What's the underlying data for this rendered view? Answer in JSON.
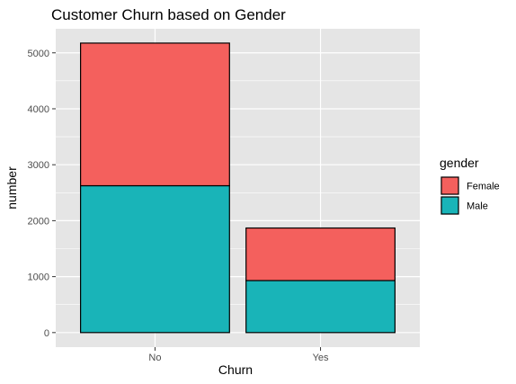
{
  "chart_data": {
    "type": "bar",
    "stacked": true,
    "title": "Customer Churn based on Gender",
    "xlabel": "Churn",
    "ylabel": "number",
    "categories": [
      "No",
      "Yes"
    ],
    "series": [
      {
        "name": "Male",
        "values": [
          2625,
          930
        ],
        "color": "#19b4b8"
      },
      {
        "name": "Female",
        "values": [
          2549,
          939
        ],
        "color": "#f4605d"
      }
    ],
    "ylim": [
      -260,
      5430
    ],
    "yticks": [
      0,
      1000,
      2000,
      3000,
      4000,
      5000
    ],
    "ytick_labels": [
      "0",
      "1000",
      "2000",
      "3000",
      "4000",
      "5000"
    ],
    "grid": true,
    "legend": {
      "title": "gender",
      "position": "right",
      "entries": [
        {
          "label": "Female",
          "color": "#f4605d"
        },
        {
          "label": "Male",
          "color": "#19b4b8"
        }
      ]
    },
    "panel_background": "#e5e5e5",
    "grid_color": "#ffffff",
    "bar_outline": "#000000"
  }
}
